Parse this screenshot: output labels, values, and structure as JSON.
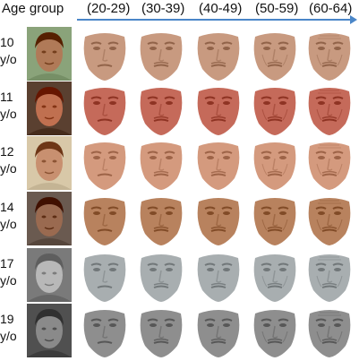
{
  "header": {
    "age_group_label": "Age group",
    "columns": [
      "(20-29)",
      "(30-39)",
      "(40-49)",
      "(50-59)",
      "(60-64)"
    ],
    "arrow_color": "#4a86c8"
  },
  "rows": [
    {
      "age": "10",
      "unit": "y/o",
      "photo_tone": "#b07a58",
      "bg": "#8aa37a",
      "face_tone": "#c89a80"
    },
    {
      "age": "11",
      "unit": "y/o",
      "photo_tone": "#c07050",
      "bg": "#5a4030",
      "face_tone": "#c56a5a"
    },
    {
      "age": "12",
      "unit": "y/o",
      "photo_tone": "#c89070",
      "bg": "#d8c8a8",
      "face_tone": "#d49a7e"
    },
    {
      "age": "14",
      "unit": "y/o",
      "photo_tone": "#9a6a50",
      "bg": "#6a5a50",
      "face_tone": "#b8825e"
    },
    {
      "age": "17",
      "unit": "y/o",
      "photo_tone": "#b8b8b8",
      "bg": "#7a7a7a",
      "face_tone": "#a8aeb0"
    },
    {
      "age": "19",
      "unit": "y/o",
      "photo_tone": "#8a8a8a",
      "bg": "#505050",
      "face_tone": "#8e8e8e"
    }
  ]
}
